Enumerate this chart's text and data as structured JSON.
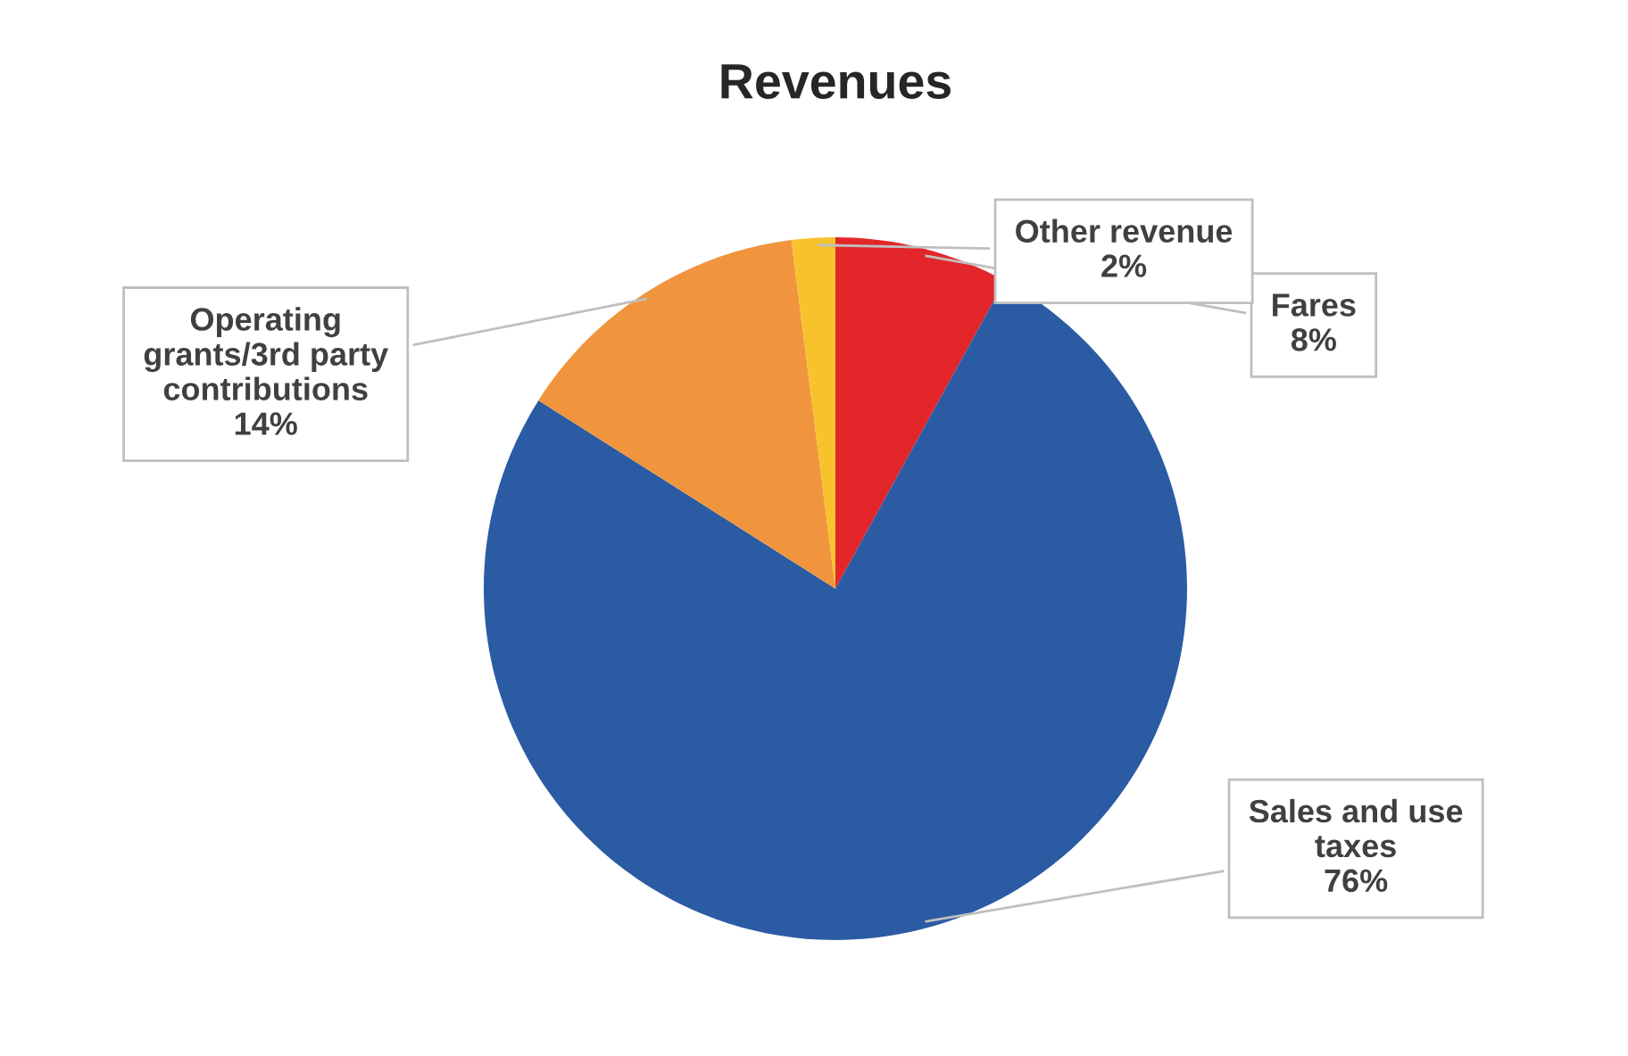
{
  "chart_data": {
    "type": "pie",
    "title": "Revenues",
    "categories": [
      "Fares",
      "Sales and use taxes",
      "Operating grants/3rd party contributions",
      "Other revenue"
    ],
    "values": [
      8,
      76,
      14,
      2
    ],
    "value_labels": [
      "8%",
      "76%",
      "14%",
      "2%"
    ],
    "colors": [
      "#e3262a",
      "#2b5ba3",
      "#f0953e",
      "#f7c22c"
    ],
    "legend": false
  }
}
